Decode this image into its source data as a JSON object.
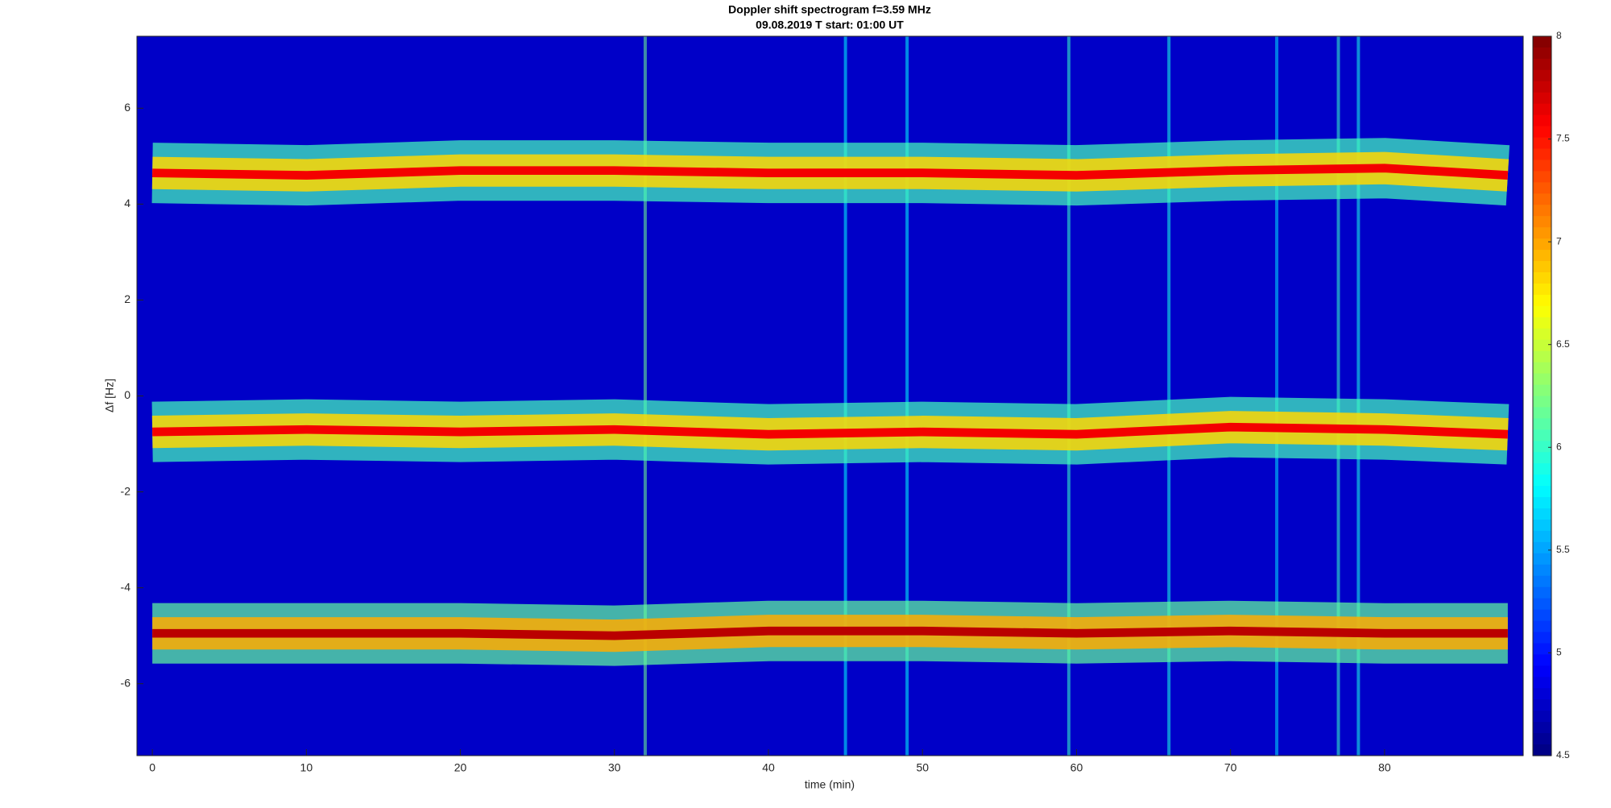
{
  "chart_data": {
    "type": "spectrogram",
    "title": "Doppler shift spectrogram f=3.59 MHz",
    "subtitle": "09.08.2019   T start: 01:00 UT",
    "xlabel": "time (min)",
    "ylabel": "Δf [Hz]",
    "xlim": [
      -1,
      89
    ],
    "ylim": [
      -7.5,
      7.5
    ],
    "xticks": [
      0,
      10,
      20,
      30,
      40,
      50,
      60,
      70,
      80
    ],
    "yticks": [
      -6,
      -4,
      -2,
      0,
      2,
      4,
      6
    ],
    "colormap": "jet",
    "clim": [
      4.5,
      8
    ],
    "cticks": [
      4.5,
      5,
      5.5,
      6,
      6.5,
      7,
      7.5,
      8
    ],
    "background_level": 4.75,
    "traces": [
      {
        "x": [
          0,
          10,
          20,
          30,
          40,
          50,
          60,
          70,
          80,
          88
        ],
        "values": [
          4.65,
          4.6,
          4.7,
          4.7,
          4.65,
          4.65,
          4.6,
          4.7,
          4.75,
          4.6
        ],
        "width": 0.9,
        "peak": 7.6
      },
      {
        "x": [
          0,
          10,
          20,
          30,
          40,
          50,
          60,
          70,
          80,
          88
        ],
        "values": [
          -0.75,
          -0.7,
          -0.75,
          -0.7,
          -0.8,
          -0.75,
          -0.8,
          -0.65,
          -0.7,
          -0.8
        ],
        "width": 0.9,
        "peak": 7.6
      },
      {
        "x": [
          0,
          10,
          20,
          30,
          40,
          50,
          60,
          70,
          80,
          88
        ],
        "values": [
          -4.95,
          -4.95,
          -4.95,
          -5.0,
          -4.9,
          -4.9,
          -4.95,
          -4.9,
          -4.95,
          -4.95
        ],
        "width": 0.9,
        "peak": 7.8
      }
    ],
    "streaks": [
      {
        "x": 32,
        "level": 6.2
      },
      {
        "x": 45,
        "level": 5.8
      },
      {
        "x": 49,
        "level": 5.8
      },
      {
        "x": 59.5,
        "level": 6.0
      },
      {
        "x": 66,
        "level": 5.9
      },
      {
        "x": 73,
        "level": 5.7
      },
      {
        "x": 77,
        "level": 6.0
      },
      {
        "x": 78.3,
        "level": 5.9
      }
    ]
  }
}
